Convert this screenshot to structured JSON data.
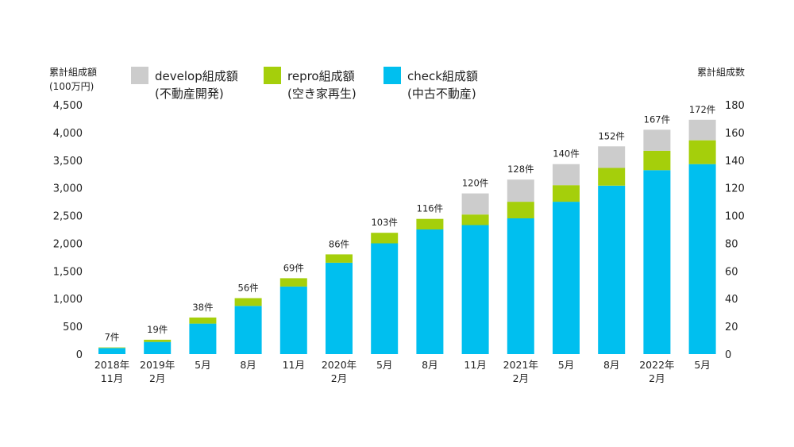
{
  "chart_data": {
    "type": "bar",
    "stacked": true,
    "left_axis_label_line1": "累計組成額",
    "left_axis_label_line2": "(100万円)",
    "right_axis_label": "累計組成数",
    "left_ylim": [
      0,
      4500
    ],
    "left_ticks": [
      "0",
      "500",
      "1,000",
      "1,500",
      "2,000",
      "2,500",
      "3,000",
      "3,500",
      "4,000",
      "4,500"
    ],
    "right_ylim": [
      0,
      180
    ],
    "right_ticks": [
      "0",
      "20",
      "40",
      "60",
      "80",
      "100",
      "120",
      "140",
      "160",
      "180"
    ],
    "grid": false,
    "legend_position": "top",
    "categories": [
      [
        "2018年",
        "11月"
      ],
      [
        "2019年",
        "2月"
      ],
      [
        "5月"
      ],
      [
        "8月"
      ],
      [
        "11月"
      ],
      [
        "2020年",
        "2月"
      ],
      [
        "5月"
      ],
      [
        "8月"
      ],
      [
        "11月"
      ],
      [
        "2021年",
        "2月"
      ],
      [
        "5月"
      ],
      [
        "8月"
      ],
      [
        "2022年",
        "2月"
      ],
      [
        "5月"
      ]
    ],
    "series": [
      {
        "name": "check組成額",
        "sub": "(中古不動産)",
        "color": "#00bfef",
        "values": [
          110,
          220,
          550,
          870,
          1220,
          1650,
          2000,
          2250,
          2330,
          2450,
          2750,
          3040,
          3320,
          3430
        ]
      },
      {
        "name": "repro組成額",
        "sub": "(空き家再生)",
        "color": "#a5cf0b",
        "values": [
          10,
          40,
          110,
          140,
          150,
          150,
          190,
          190,
          190,
          300,
          300,
          320,
          350,
          430
        ]
      },
      {
        "name": "develop組成額",
        "sub": "(不動産開発)",
        "color": "#cccccc",
        "values": [
          0,
          0,
          0,
          0,
          0,
          0,
          0,
          0,
          380,
          400,
          380,
          390,
          380,
          370
        ]
      }
    ],
    "count_labels": [
      "7件",
      "19件",
      "38件",
      "56件",
      "69件",
      "86件",
      "103件",
      "116件",
      "120件",
      "128件",
      "140件",
      "152件",
      "167件",
      "172件"
    ]
  }
}
